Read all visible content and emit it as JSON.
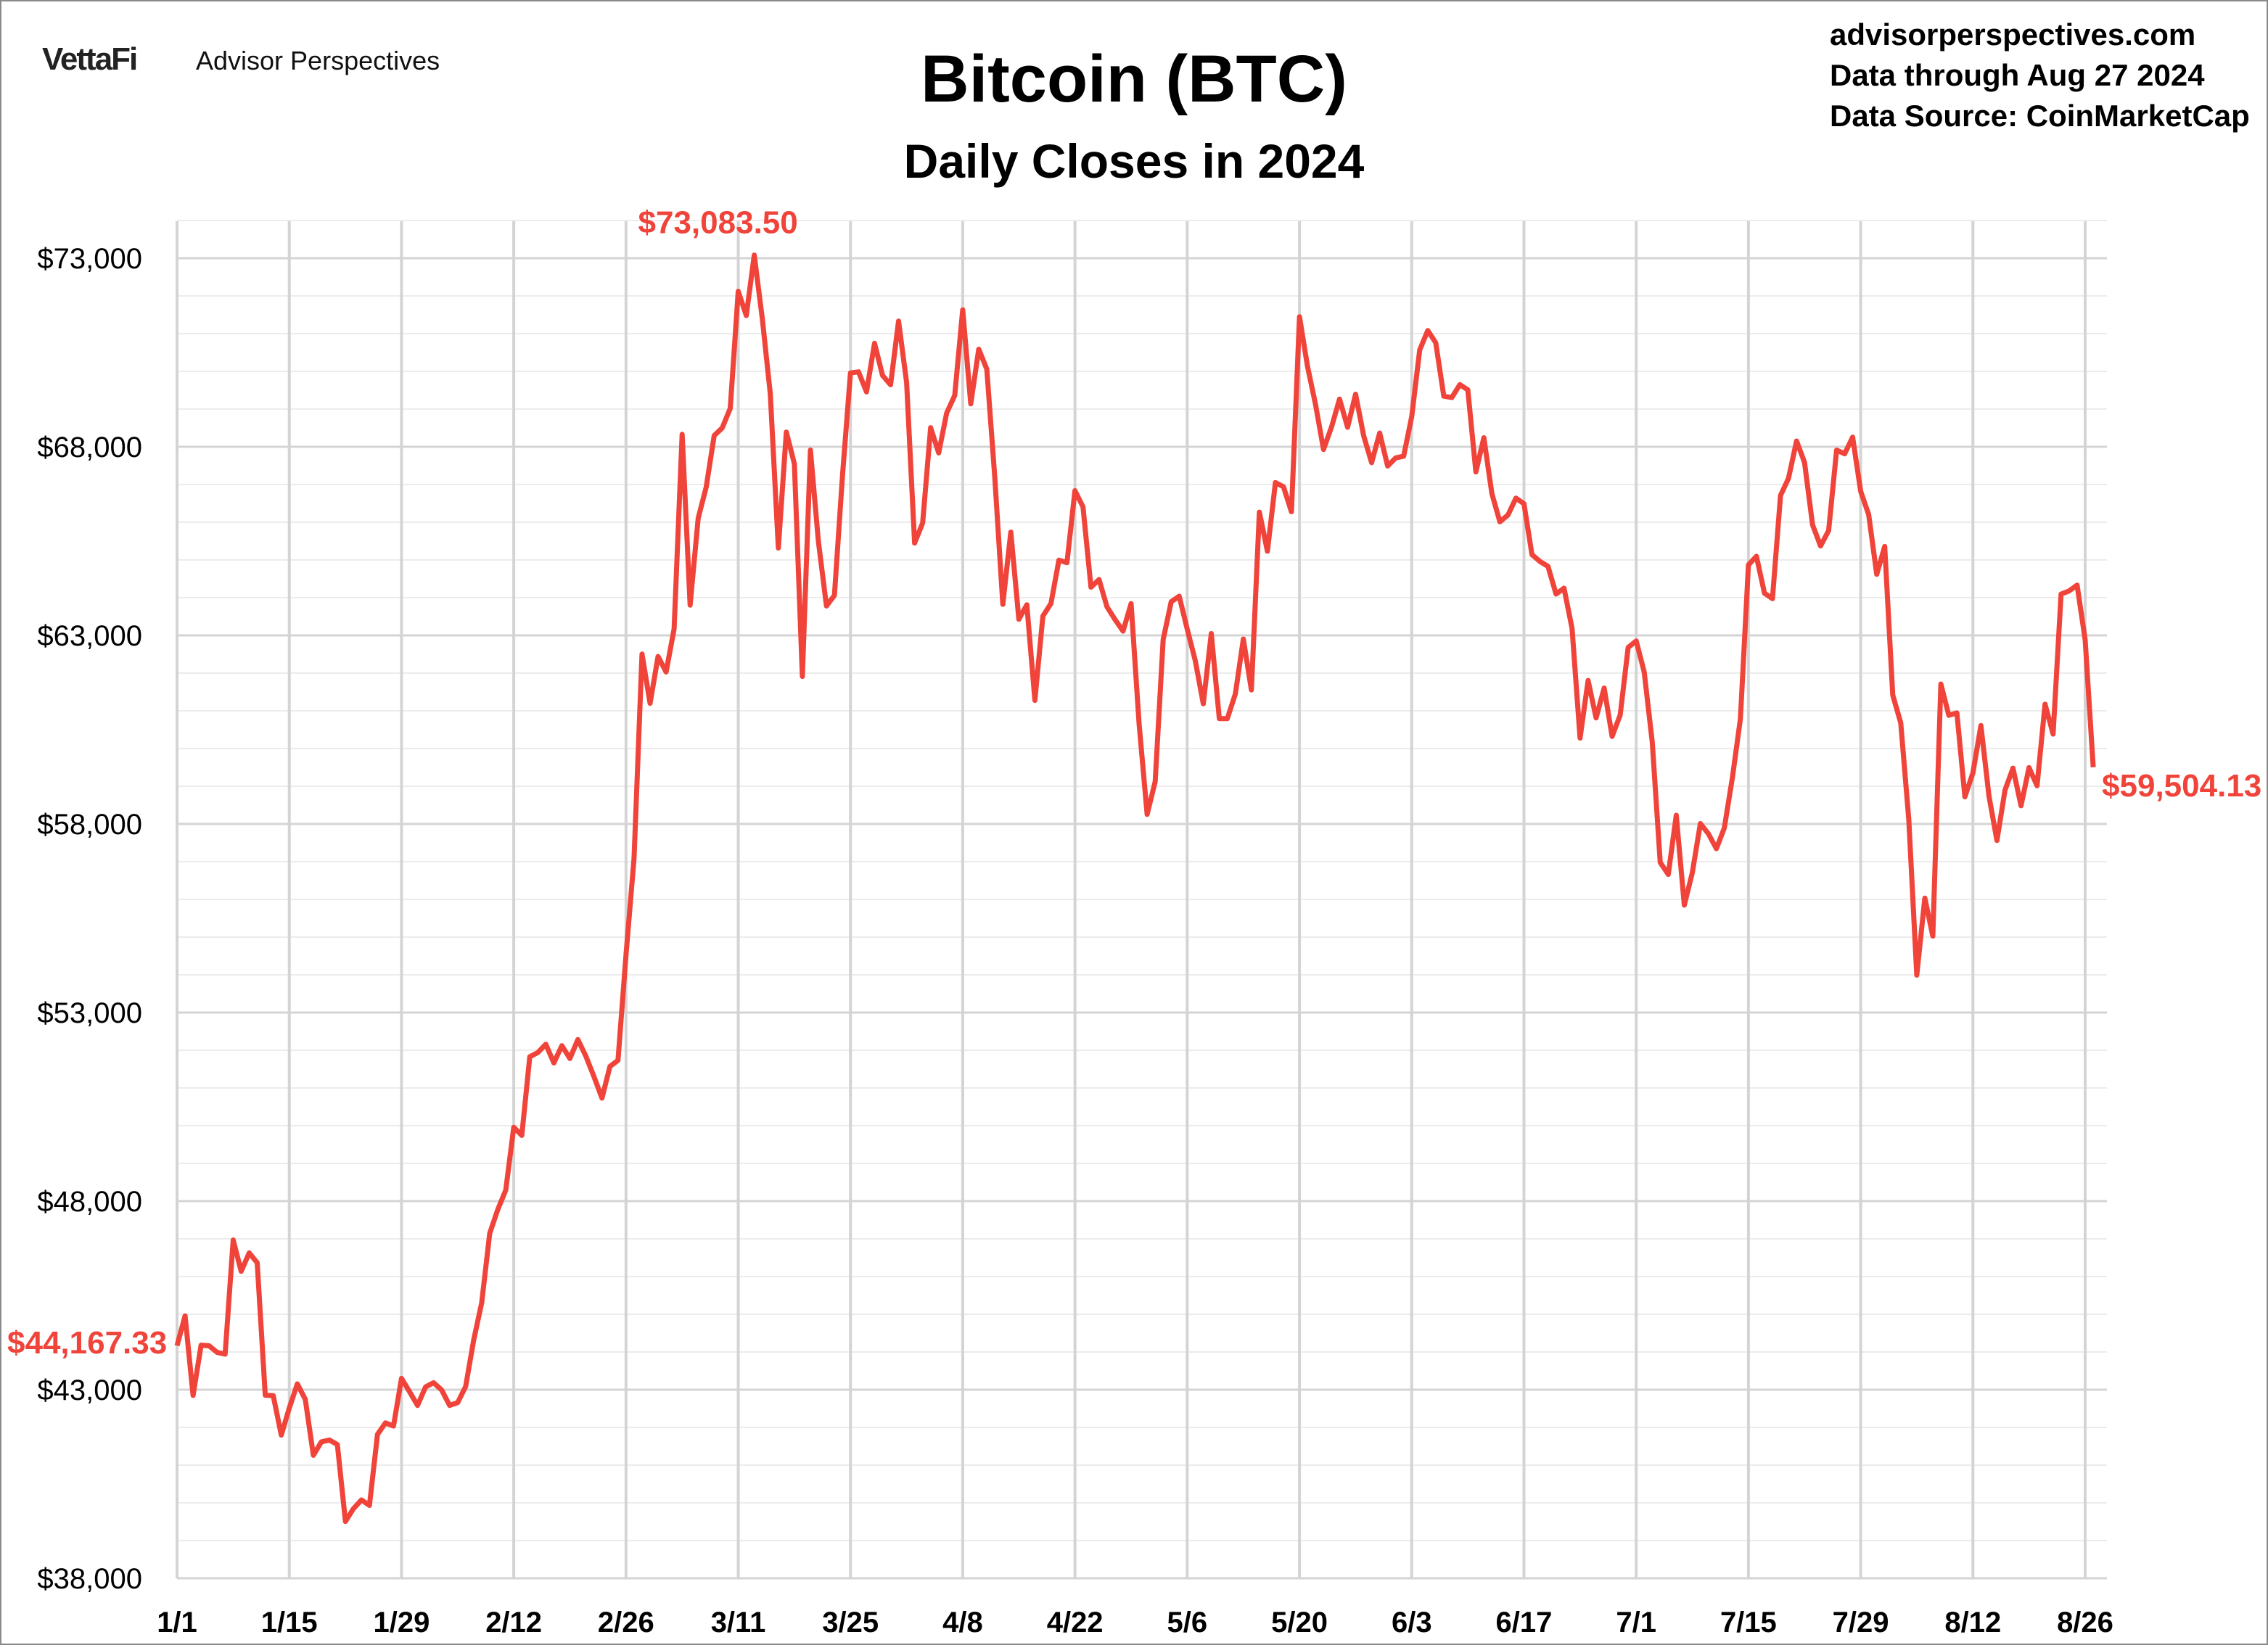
{
  "header": {
    "logo_text": "VettaFi",
    "brand": "Advisor Perspectives",
    "site": "advisorperspectives.com",
    "data_through": "Data through Aug 27 2024",
    "data_source": "Data Source: CoinMarketCap"
  },
  "chart_data": {
    "type": "line",
    "title": "Bitcoin (BTC)",
    "subtitle": "Daily Closes in 2024",
    "xlabel": "",
    "ylabel": "",
    "ylim": [
      38000,
      74000
    ],
    "yticks": [
      38000,
      43000,
      48000,
      53000,
      58000,
      63000,
      68000,
      73000
    ],
    "ytick_labels": [
      "$38,000",
      "$43,000",
      "$48,000",
      "$53,000",
      "$58,000",
      "$63,000",
      "$68,000",
      "$73,000"
    ],
    "xtick_labels": [
      "1/1",
      "1/15",
      "1/29",
      "2/12",
      "2/26",
      "3/11",
      "3/25",
      "4/8",
      "4/22",
      "5/6",
      "5/20",
      "6/3",
      "6/17",
      "7/1",
      "7/15",
      "7/29",
      "8/12",
      "8/26"
    ],
    "x_start": "2024-01-01",
    "x_end": "2024-08-27",
    "grid": true,
    "line_color": "#F0433A",
    "annotations": {
      "start": "$44,167.33",
      "max": "$73,083.50",
      "end": "$59,504.13"
    },
    "series": [
      {
        "values": [
          44167,
          44958,
          42848,
          44180,
          44163,
          43989,
          43943,
          46970,
          46139,
          46627,
          46368,
          42853,
          42842,
          41796,
          42511,
          43154,
          42742,
          41262,
          41618,
          41665,
          41545,
          39507,
          39845,
          40077,
          39933,
          41816,
          42120,
          42036,
          43300,
          42946,
          42582,
          43075,
          43185,
          42992,
          42583,
          42658,
          43084,
          44318,
          45301,
          47147,
          47771,
          48293,
          49958,
          49743,
          51826,
          51938,
          52160,
          51663,
          52122,
          51780,
          52284,
          51839,
          51304,
          50731,
          51571,
          51733,
          54522,
          57085,
          62504,
          61198,
          62440,
          62029,
          63167,
          68330,
          63801,
          66106,
          66925,
          68300,
          68498,
          69019,
          72123,
          71481,
          73083.5,
          71397,
          69403,
          65315,
          68390,
          67548,
          61912,
          67913,
          65491,
          63778,
          64062,
          67234,
          69958,
          69987,
          69455,
          70744,
          69892,
          69645,
          71333,
          69702,
          65446,
          65980,
          68508,
          67837,
          68896,
          69362,
          71631,
          69139,
          70587,
          70060,
          67195,
          63821,
          65738,
          63426,
          63811,
          61276,
          63512,
          63843,
          64994,
          64926,
          66837,
          66407,
          64276,
          64481,
          63755,
          63419,
          63113,
          63842,
          60636,
          58254,
          59123,
          62889,
          63892,
          64038,
          63162,
          62334,
          61187,
          63049,
          60792,
          60793,
          61448,
          62901,
          61553,
          66267,
          65231,
          67051,
          66940,
          66278,
          71448,
          70136,
          69122,
          67929,
          68526,
          69265,
          68518,
          69394,
          68296,
          67578,
          68365,
          67491,
          67706,
          67751,
          68804,
          70567,
          71082,
          70757,
          69342,
          69305,
          69648,
          69512,
          67332,
          68241,
          66756,
          66011,
          66191,
          66639,
          66491,
          65140,
          64960,
          64828,
          64096,
          64252,
          63180,
          60277,
          61804,
          60812,
          61604,
          60321,
          60887,
          62678,
          62851,
          62029,
          60173,
          56978,
          56662,
          58230,
          55849,
          56705,
          58009,
          57742,
          57344,
          57899,
          59231,
          60787,
          64870,
          65097,
          64118,
          63974,
          66710,
          67163,
          68154,
          67585,
          65927,
          65372,
          65777,
          67912,
          67813,
          68255,
          66819,
          66201,
          64620,
          65357,
          61415,
          60680,
          58116,
          53991,
          56034,
          55027,
          61710,
          60880,
          60945,
          58720,
          59355,
          60610,
          58740,
          57561,
          58894,
          59479,
          58483,
          59494,
          59013,
          61175,
          60382,
          64094,
          64179,
          64333,
          62880,
          59504.13
        ]
      }
    ]
  }
}
